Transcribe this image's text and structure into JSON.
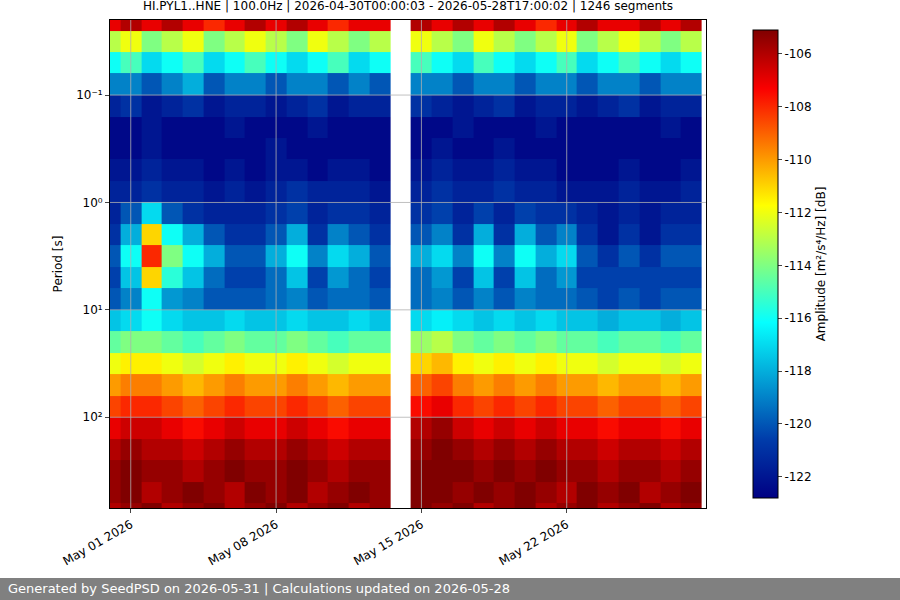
{
  "chart_data": {
    "type": "heatmap",
    "title": "HI.PYL1..HNE | 100.0Hz | 2026-04-30T00:00:03 - 2026-05-28T17:00:02 | 1246 segments",
    "ylabel": "Period [s]",
    "colorbar_title": "Amplitude [m²/s⁴/Hz] [dB]",
    "footer": "Generated by SeedPSD on 2026-05-31 | Calculations updated on 2026-05-28",
    "color": "Jet",
    "log": "y",
    "grid": true,
    "x": [
      "2026-04-30",
      "2026-05-01",
      "2026-05-02",
      "2026-05-03",
      "2026-05-04",
      "2026-05-05",
      "2026-05-06",
      "2026-05-07",
      "2026-05-08",
      "2026-05-09",
      "2026-05-10",
      "2026-05-11",
      "2026-05-12",
      "2026-05-13",
      "2026-05-14",
      "2026-05-15",
      "2026-05-16",
      "2026-05-17",
      "2026-05-18",
      "2026-05-19",
      "2026-05-20",
      "2026-05-21",
      "2026-05-22",
      "2026-05-23",
      "2026-05-24",
      "2026-05-25",
      "2026-05-26",
      "2026-05-27",
      "2026-05-28"
    ],
    "y": [
      0.02,
      0.032,
      0.05,
      0.079,
      0.126,
      0.2,
      0.316,
      0.5,
      0.79,
      1.26,
      2,
      3.16,
      5,
      7.9,
      12.6,
      20,
      31.6,
      50,
      79,
      126,
      200,
      316,
      500,
      794
    ],
    "z": [
      [
        -107,
        -106,
        -107,
        -106,
        -107,
        -108,
        -107,
        -106,
        -107,
        -106,
        -107,
        -108,
        -107,
        -107,
        null,
        -106,
        -107,
        -106,
        -107,
        -106,
        -107,
        -108,
        -107,
        -106,
        -107,
        -107,
        -106,
        -107,
        -106
      ],
      [
        -113,
        -112,
        -114,
        -113,
        -112,
        -114,
        -113,
        -112,
        -113,
        -114,
        -112,
        -113,
        -114,
        -113,
        null,
        -112,
        -113,
        -114,
        -112,
        -113,
        -114,
        -113,
        -112,
        -114,
        -113,
        -112,
        -113,
        -114,
        -113
      ],
      [
        -116,
        -115,
        -117,
        -116,
        -115,
        -117,
        -116,
        -115,
        -116,
        -117,
        -116,
        -115,
        -117,
        -116,
        null,
        -115,
        -116,
        -117,
        -115,
        -116,
        -117,
        -116,
        -115,
        -117,
        -116,
        -115,
        -116,
        -117,
        -116
      ],
      [
        -119,
        -119,
        -120,
        -119,
        -118,
        -120,
        -119,
        -119,
        -120,
        -119,
        -119,
        -120,
        -119,
        -120,
        null,
        -119,
        -119,
        -120,
        -119,
        -119,
        -120,
        -119,
        -119,
        -120,
        -119,
        -119,
        -120,
        -119,
        -119
      ],
      [
        -121.5,
        -121,
        -122,
        -121.5,
        -121,
        -122,
        -121.5,
        -121.5,
        -122,
        -121.5,
        -121,
        -122,
        -121.5,
        -121.5,
        null,
        -121,
        -121.5,
        -122,
        -121.5,
        -121,
        -122,
        -121.5,
        -121.5,
        -122,
        -121.5,
        -121,
        -122,
        -121.5,
        -121.5
      ],
      [
        -122.5,
        -122.5,
        -122,
        -122.5,
        -122.5,
        -122.5,
        -122,
        -122.5,
        -122.5,
        -122.5,
        -122,
        -122.5,
        -122.5,
        -122.5,
        null,
        -122.5,
        -122.5,
        -122,
        -122.5,
        -122.5,
        -122.5,
        -122,
        -122.5,
        -122.5,
        -122.5,
        -122.5,
        -122.5,
        -122,
        -122.5
      ],
      [
        -122.5,
        -122.5,
        -122,
        -122.5,
        -122.5,
        -122.5,
        -122.5,
        -122.5,
        -122,
        -122.5,
        -122.5,
        -122.5,
        -122.5,
        -122.5,
        null,
        -122.5,
        -122,
        -122.5,
        -122.5,
        -122,
        -122.5,
        -122.5,
        -122.5,
        -122.5,
        -122.5,
        -122.5,
        -122.5,
        -122.5,
        -122.5
      ],
      [
        -122,
        -122,
        -121.5,
        -122,
        -122,
        -122.5,
        -122,
        -122.5,
        -122,
        -122,
        -122.5,
        -122,
        -122,
        -122.5,
        null,
        -122,
        -121.5,
        -122,
        -122,
        -121.5,
        -122,
        -122,
        -122.5,
        -122.5,
        -122.5,
        -122,
        -122.5,
        -122.5,
        -122
      ],
      [
        -121.5,
        -121.5,
        -121,
        -121.5,
        -121.5,
        -122,
        -121.5,
        -122,
        -121.5,
        -121,
        -121.5,
        -121.5,
        -121.5,
        -122,
        null,
        -121.5,
        -121,
        -121.5,
        -121.5,
        -121,
        -121.5,
        -121.5,
        -122,
        -122,
        -122,
        -121.5,
        -122,
        -122,
        -121.5
      ],
      [
        -121.5,
        -120,
        -117,
        -120,
        -121,
        -121.5,
        -121.5,
        -121.5,
        -121,
        -120.5,
        -121.5,
        -121,
        -121,
        -121.5,
        null,
        -121,
        -120.5,
        -121.5,
        -120.5,
        -121.5,
        -120.5,
        -121,
        -121,
        -121.5,
        -122,
        -121.5,
        -122,
        -121.5,
        -121.5
      ],
      [
        -121,
        -118,
        -111,
        -116,
        -118,
        -120,
        -121,
        -121,
        -120,
        -118,
        -121,
        -119,
        -120,
        -121,
        null,
        -120,
        -119,
        -121,
        -118,
        -121,
        -118,
        -120,
        -119,
        -121,
        -122,
        -121,
        -122,
        -121,
        -121
      ],
      [
        -120,
        -116,
        -108,
        -114,
        -116,
        -118,
        -120,
        -120,
        -118,
        -116,
        -119,
        -117,
        -118,
        -120,
        null,
        -118,
        -117,
        -119,
        -116,
        -119,
        -116,
        -118,
        -117,
        -120,
        -121,
        -120,
        -121,
        -120,
        -120
      ],
      [
        -120.5,
        -117.5,
        -111,
        -115.5,
        -117.5,
        -119.5,
        -120.5,
        -120.5,
        -119.5,
        -117.5,
        -120.5,
        -118.5,
        -119.5,
        -120.5,
        null,
        -119.5,
        -118.5,
        -120.5,
        -117.5,
        -120.5,
        -117.5,
        -119.5,
        -118.5,
        -120.5,
        -120.5,
        -120.5,
        -120.5,
        -120.5,
        -120.5
      ],
      [
        -120,
        -119,
        -116,
        -118.5,
        -119,
        -120,
        -120,
        -120,
        -119.5,
        -119,
        -120,
        -119.5,
        -119.5,
        -120,
        null,
        -119.5,
        -119,
        -120,
        -119,
        -120,
        -119,
        -119.5,
        -119.5,
        -120,
        -120.5,
        -120,
        -120.5,
        -120,
        -120
      ],
      [
        -117.5,
        -117,
        -116,
        -117,
        -117.5,
        -117.5,
        -117,
        -117.5,
        -117.5,
        -117,
        -117.5,
        -117.5,
        -117,
        -117.5,
        null,
        -117,
        -116.5,
        -117,
        -117.5,
        -117,
        -117.5,
        -117,
        -117.5,
        -117.5,
        -118,
        -117.5,
        -117.5,
        -118,
        -117.5
      ],
      [
        -114.5,
        -114,
        -114,
        -114.5,
        -115,
        -114.5,
        -114,
        -114.5,
        -114.5,
        -114,
        -114.5,
        -115,
        -114.5,
        -114.5,
        null,
        -113.5,
        -113,
        -114,
        -114.5,
        -114,
        -114.5,
        -114,
        -114.5,
        -114.5,
        -115,
        -114.5,
        -114.5,
        -115,
        -114.5
      ],
      [
        -112,
        -111.5,
        -111.5,
        -112,
        -112.5,
        -112,
        -111.5,
        -112,
        -112,
        -111.5,
        -112,
        -112.5,
        -112,
        -112,
        null,
        -111,
        -110.5,
        -111.5,
        -112,
        -111.5,
        -112,
        -111.5,
        -112,
        -112,
        -112.5,
        -112,
        -112,
        -112.5,
        -112
      ],
      [
        -110,
        -109.5,
        -109.5,
        -110,
        -110.5,
        -110,
        -109.5,
        -110,
        -110,
        -109.5,
        -110,
        -110.5,
        -110,
        -110,
        null,
        -109,
        -108.5,
        -109.5,
        -110,
        -109.5,
        -110,
        -109.5,
        -110,
        -110,
        -110.5,
        -110,
        -110,
        -110.5,
        -110
      ],
      [
        -108.5,
        -108,
        -108,
        -108.5,
        -109,
        -108.5,
        -108,
        -108.5,
        -108.5,
        -108,
        -108.5,
        -109,
        -108.5,
        -108.5,
        null,
        -107.5,
        -107,
        -108,
        -108.5,
        -108,
        -108.5,
        -108,
        -108.5,
        -108.5,
        -109,
        -108.5,
        -108.5,
        -109,
        -108.5
      ],
      [
        -107,
        -106.5,
        -106.5,
        -107,
        -107.5,
        -107,
        -106.5,
        -107,
        -107,
        -106.5,
        -107,
        -107.5,
        -107,
        -107,
        null,
        -106,
        -105.5,
        -106.5,
        -107,
        -106.5,
        -107,
        -106.5,
        -107,
        -107,
        -107.5,
        -107,
        -107,
        -107.5,
        -107
      ],
      [
        -106,
        -105.5,
        -106,
        -106,
        -106.5,
        -106,
        -105.5,
        -106,
        -106,
        -105.5,
        -106,
        -106.5,
        -106,
        -106,
        null,
        -105.5,
        -105,
        -105.5,
        -106,
        -105.5,
        -106,
        -105.5,
        -106,
        -106,
        -106.5,
        -106,
        -106,
        -106.5,
        -106
      ],
      [
        -105.5,
        -105,
        -105.5,
        -105.5,
        -106,
        -105.5,
        -105,
        -105.5,
        -105.5,
        -105,
        -105.5,
        -106,
        -105.5,
        -105.5,
        null,
        -105,
        -105,
        -105,
        -105.5,
        -105,
        -105.5,
        -105,
        -105.5,
        -105.5,
        -106,
        -105.5,
        -105.5,
        -106,
        -105.5
      ],
      [
        -105.5,
        -105,
        -106,
        -105.5,
        -105,
        -105.5,
        -106,
        -105,
        -105.5,
        -105,
        -106,
        -105.5,
        -105,
        -105.5,
        null,
        -105,
        -105,
        -105.5,
        -105,
        -105.5,
        -105,
        -105.5,
        -106,
        -105,
        -105.5,
        -105,
        -106,
        -105.5,
        -105
      ],
      [
        -106,
        -105.5,
        -105,
        -106,
        -105.5,
        -105,
        -106,
        -105.5,
        -105,
        -106,
        -105.5,
        -105,
        -106,
        -105.5,
        null,
        -105,
        -105.5,
        -105,
        -106,
        -105.5,
        -105,
        -106,
        -105.5,
        -105,
        -106,
        -105.5,
        -105,
        -106,
        -105.5
      ]
    ],
    "xlim": [
      "2026-04-30 00:00:03",
      "2026-05-28 17:00:02"
    ],
    "xticks": [
      {
        "value": "2026-05-01",
        "label": "May 01 2026"
      },
      {
        "value": "2026-05-08",
        "label": "May 08 2026"
      },
      {
        "value": "2026-05-15",
        "label": "May 15 2026"
      },
      {
        "value": "2026-05-22",
        "label": "May 22 2026"
      }
    ],
    "ylim": [
      700,
      0.02
    ],
    "yticks": [
      {
        "value": 0.1,
        "label": "10⁻¹"
      },
      {
        "value": 1,
        "label": "10⁰"
      },
      {
        "value": 10,
        "label": "10¹"
      },
      {
        "value": 100,
        "label": "10²"
      }
    ],
    "zlim": [
      -122.8,
      -105.1
    ],
    "zticks": [
      -122,
      -120,
      -118,
      -116,
      -114,
      -112,
      -110,
      -108,
      -106
    ]
  }
}
